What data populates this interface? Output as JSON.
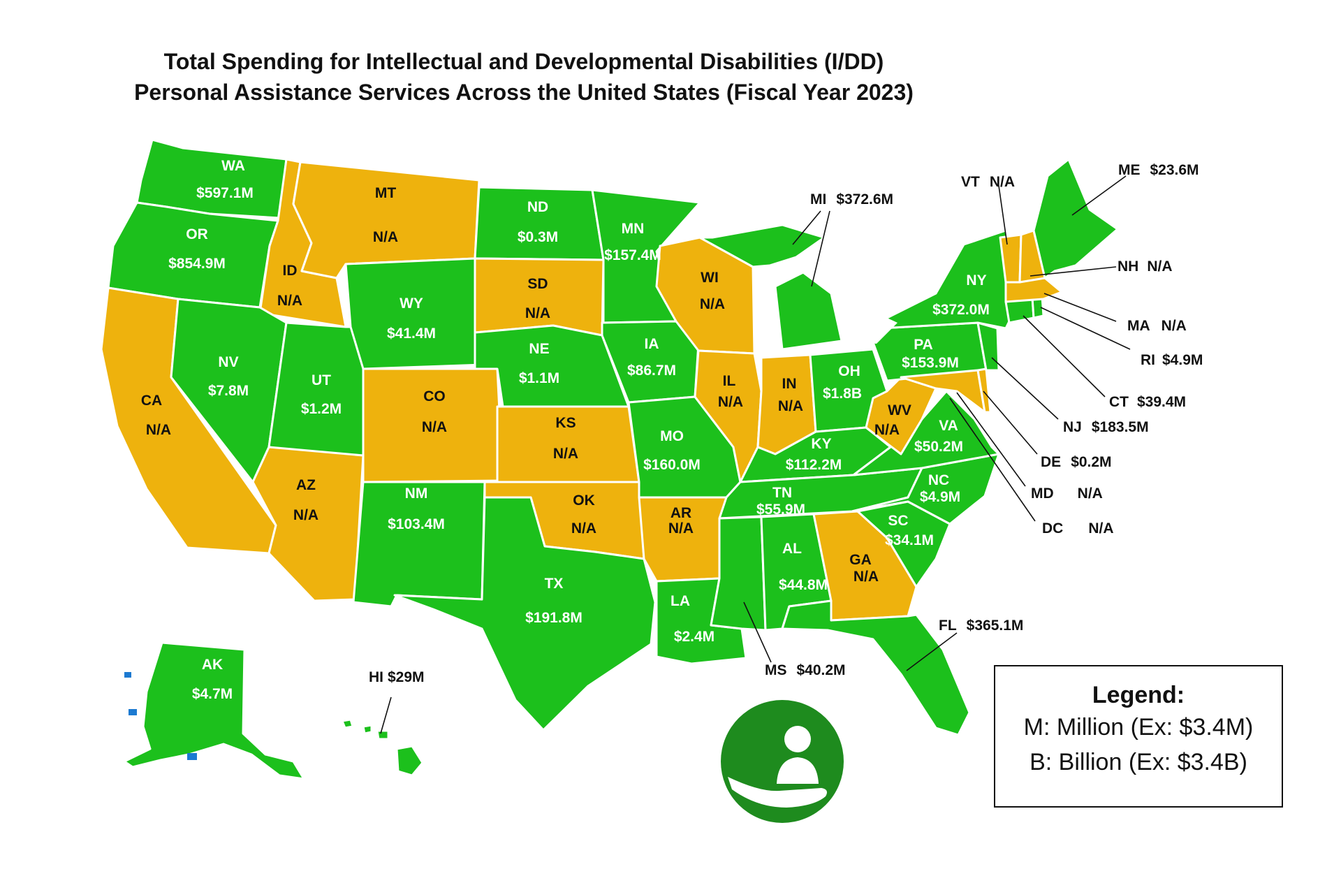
{
  "title": {
    "line1": "Total Spending for Intellectual and Developmental Disabilities (I/DD)",
    "line2": "Personal Assistance Services Across the United States (Fiscal Year 2023)"
  },
  "colors": {
    "has_value": "#1cc01c",
    "no_data": "#eeb20d",
    "logo": "#1e8b1e"
  },
  "states": {
    "WA": {
      "abbr": "WA",
      "value": "$597.1M"
    },
    "OR": {
      "abbr": "OR",
      "value": "$854.9M"
    },
    "CA": {
      "abbr": "CA",
      "value": "N/A"
    },
    "ID": {
      "abbr": "ID",
      "value": "N/A"
    },
    "MT": {
      "abbr": "MT",
      "value": "N/A"
    },
    "NV": {
      "abbr": "NV",
      "value": "$7.8M"
    },
    "UT": {
      "abbr": "UT",
      "value": "$1.2M"
    },
    "WY": {
      "abbr": "WY",
      "value": "$41.4M"
    },
    "AZ": {
      "abbr": "AZ",
      "value": "N/A"
    },
    "CO": {
      "abbr": "CO",
      "value": "N/A"
    },
    "NM": {
      "abbr": "NM",
      "value": "$103.4M"
    },
    "ND": {
      "abbr": "ND",
      "value": "$0.3M"
    },
    "SD": {
      "abbr": "SD",
      "value": "N/A"
    },
    "NE": {
      "abbr": "NE",
      "value": "$1.1M"
    },
    "KS": {
      "abbr": "KS",
      "value": "N/A"
    },
    "OK": {
      "abbr": "OK",
      "value": "N/A"
    },
    "TX": {
      "abbr": "TX",
      "value": "$191.8M"
    },
    "MN": {
      "abbr": "MN",
      "value": "$157.4M"
    },
    "IA": {
      "abbr": "IA",
      "value": "$86.7M"
    },
    "MO": {
      "abbr": "MO",
      "value": "$160.0M"
    },
    "AR": {
      "abbr": "AR",
      "value": "N/A"
    },
    "LA": {
      "abbr": "LA",
      "value": "$2.4M"
    },
    "WI": {
      "abbr": "WI",
      "value": "N/A"
    },
    "IL": {
      "abbr": "IL",
      "value": "N/A"
    },
    "MI": {
      "abbr": "MI",
      "value": "$372.6M"
    },
    "IN": {
      "abbr": "IN",
      "value": "N/A"
    },
    "OH": {
      "abbr": "OH",
      "value": "$1.8B"
    },
    "KY": {
      "abbr": "KY",
      "value": "$112.2M"
    },
    "TN": {
      "abbr": "TN",
      "value": "$55.9M"
    },
    "MS": {
      "abbr": "MS",
      "value": "$40.2M"
    },
    "AL": {
      "abbr": "AL",
      "value": "$44.8M"
    },
    "GA": {
      "abbr": "GA",
      "value": "N/A"
    },
    "FL": {
      "abbr": "FL",
      "value": "$365.1M"
    },
    "SC": {
      "abbr": "SC",
      "value": "$34.1M"
    },
    "NC": {
      "abbr": "NC",
      "value": "$4.9M"
    },
    "VA": {
      "abbr": "VA",
      "value": "$50.2M"
    },
    "WV": {
      "abbr": "WV",
      "value": "N/A"
    },
    "PA": {
      "abbr": "PA",
      "value": "$153.9M"
    },
    "NY": {
      "abbr": "NY",
      "value": "$372.0M"
    },
    "VT": {
      "abbr": "VT",
      "value": "N/A"
    },
    "NH": {
      "abbr": "NH",
      "value": "N/A"
    },
    "ME": {
      "abbr": "ME",
      "value": "$23.6M"
    },
    "MA": {
      "abbr": "MA",
      "value": "N/A"
    },
    "RI": {
      "abbr": "RI",
      "value": "$4.9M"
    },
    "CT": {
      "abbr": "CT",
      "value": "$39.4M"
    },
    "NJ": {
      "abbr": "NJ",
      "value": "$183.5M"
    },
    "DE": {
      "abbr": "DE",
      "value": "$0.2M"
    },
    "MD": {
      "abbr": "MD",
      "value": "N/A"
    },
    "DC": {
      "abbr": "DC",
      "value": "N/A"
    },
    "AK": {
      "abbr": "AK",
      "value": "$4.7M"
    },
    "HI": {
      "abbr": "HI",
      "value": "$29M"
    }
  },
  "legend": {
    "title": "Legend:",
    "million": "M: Million (Ex: $3.4M)",
    "billion": "B: Billion (Ex: $3.4B)"
  },
  "logo_icon": "person-in-hand-icon"
}
